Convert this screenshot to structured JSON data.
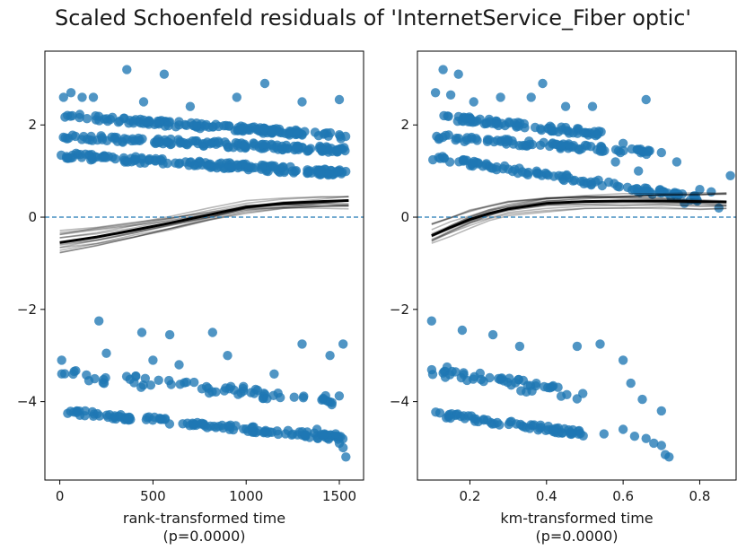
{
  "figure": {
    "title": "Scaled Schoenfeld residuals of 'InternetService_Fiber optic'"
  },
  "chart_data": [
    {
      "type": "scatter",
      "xlabel": "rank-transformed time",
      "p_label": "(p=0.0000)",
      "xlim": [
        -80,
        1630
      ],
      "ylim": [
        -5.7,
        3.6
      ],
      "xticks": [
        0,
        500,
        1000,
        1500
      ],
      "xtick_labels": [
        "0",
        "500",
        "1000",
        "1500"
      ],
      "yticks": [
        -4,
        -2,
        0,
        2
      ],
      "ytick_labels": [
        "−4",
        "−2",
        "0",
        "2"
      ],
      "zero_line": 0,
      "grid": false,
      "point_color": "#1f77b4",
      "bands": [
        {
          "x0": 0,
          "x1": 1540,
          "y0": 2.2,
          "y1": 1.75,
          "spread": 0.06,
          "n": 150
        },
        {
          "x0": 0,
          "x1": 1540,
          "y0": 1.75,
          "y1": 1.45,
          "spread": 0.06,
          "n": 150
        },
        {
          "x0": 0,
          "x1": 1540,
          "y0": 1.35,
          "y1": 0.95,
          "spread": 0.07,
          "n": 170
        },
        {
          "x0": 0,
          "x1": 1540,
          "y0": -3.4,
          "y1": -4.0,
          "spread": 0.12,
          "n": 70
        },
        {
          "x0": 0,
          "x1": 1540,
          "y0": -4.2,
          "y1": -4.8,
          "spread": 0.06,
          "n": 130
        }
      ],
      "scatter_points": [
        [
          20,
          2.6
        ],
        [
          60,
          2.7
        ],
        [
          120,
          2.6
        ],
        [
          180,
          2.6
        ],
        [
          360,
          3.2
        ],
        [
          560,
          3.1
        ],
        [
          450,
          2.5
        ],
        [
          700,
          2.4
        ],
        [
          1100,
          2.9
        ],
        [
          1300,
          2.5
        ],
        [
          1500,
          2.55
        ],
        [
          950,
          2.6
        ],
        [
          210,
          -2.25
        ],
        [
          440,
          -2.5
        ],
        [
          590,
          -2.55
        ],
        [
          820,
          -2.5
        ],
        [
          1300,
          -2.75
        ],
        [
          1520,
          -2.75
        ],
        [
          250,
          -2.95
        ],
        [
          500,
          -3.1
        ],
        [
          900,
          -3.0
        ],
        [
          1150,
          -3.4
        ],
        [
          1450,
          -3.0
        ],
        [
          10,
          -3.1
        ],
        [
          640,
          -3.2
        ],
        [
          1480,
          -4.7
        ],
        [
          1500,
          -4.9
        ],
        [
          1520,
          -5.0
        ],
        [
          1535,
          -5.2
        ],
        [
          1380,
          -4.6
        ],
        [
          1420,
          -4.7
        ]
      ],
      "lowess_main": {
        "x": [
          0,
          200,
          400,
          600,
          800,
          1000,
          1200,
          1400,
          1550
        ],
        "y": [
          -0.55,
          -0.43,
          -0.28,
          -0.12,
          0.05,
          0.22,
          0.3,
          0.34,
          0.36
        ]
      },
      "bootstrap_count": 14
    },
    {
      "type": "scatter",
      "xlabel": "km-transformed time",
      "p_label": "(p=0.0000)",
      "xlim": [
        0.063,
        0.895
      ],
      "ylim": [
        -5.7,
        3.6
      ],
      "xticks": [
        0.2,
        0.4,
        0.6,
        0.8
      ],
      "xtick_labels": [
        "0.2",
        "0.4",
        "0.6",
        "0.8"
      ],
      "yticks": [
        -4,
        -2,
        0,
        2
      ],
      "ytick_labels": [
        "−4",
        "−2",
        "0",
        "2"
      ],
      "zero_line": 0,
      "grid": false,
      "point_color": "#1f77b4",
      "bands": [
        {
          "x0": 0.1,
          "x1": 0.55,
          "y0": 2.2,
          "y1": 1.8,
          "spread": 0.06,
          "n": 80
        },
        {
          "x0": 0.1,
          "x1": 0.68,
          "y0": 1.75,
          "y1": 1.4,
          "spread": 0.06,
          "n": 90
        },
        {
          "x0": 0.1,
          "x1": 0.8,
          "y0": 1.3,
          "y1": 0.4,
          "spread": 0.07,
          "n": 110
        },
        {
          "x0": 0.1,
          "x1": 0.5,
          "y0": -3.3,
          "y1": -3.9,
          "spread": 0.12,
          "n": 50
        },
        {
          "x0": 0.1,
          "x1": 0.5,
          "y0": -4.25,
          "y1": -4.7,
          "spread": 0.06,
          "n": 70
        }
      ],
      "scatter_points": [
        [
          0.13,
          3.2
        ],
        [
          0.17,
          3.1
        ],
        [
          0.11,
          2.7
        ],
        [
          0.15,
          2.65
        ],
        [
          0.21,
          2.5
        ],
        [
          0.28,
          2.6
        ],
        [
          0.36,
          2.6
        ],
        [
          0.39,
          2.9
        ],
        [
          0.45,
          2.4
        ],
        [
          0.52,
          2.4
        ],
        [
          0.66,
          2.55
        ],
        [
          0.6,
          1.6
        ],
        [
          0.7,
          1.4
        ],
        [
          0.74,
          1.2
        ],
        [
          0.88,
          0.9
        ],
        [
          0.8,
          0.6
        ],
        [
          0.85,
          0.2
        ],
        [
          0.83,
          0.55
        ],
        [
          0.76,
          0.3
        ],
        [
          0.64,
          1.0
        ],
        [
          0.58,
          1.2
        ],
        [
          0.1,
          -2.25
        ],
        [
          0.18,
          -2.45
        ],
        [
          0.26,
          -2.55
        ],
        [
          0.33,
          -2.8
        ],
        [
          0.48,
          -2.8
        ],
        [
          0.54,
          -2.75
        ],
        [
          0.6,
          -3.1
        ],
        [
          0.62,
          -3.6
        ],
        [
          0.65,
          -3.95
        ],
        [
          0.6,
          -4.6
        ],
        [
          0.63,
          -4.75
        ],
        [
          0.66,
          -4.8
        ],
        [
          0.68,
          -4.9
        ],
        [
          0.7,
          -4.95
        ],
        [
          0.71,
          -5.15
        ],
        [
          0.72,
          -5.2
        ],
        [
          0.7,
          -4.2
        ],
        [
          0.55,
          -4.7
        ]
      ],
      "lowess_main": {
        "x": [
          0.1,
          0.15,
          0.2,
          0.25,
          0.3,
          0.4,
          0.5,
          0.6,
          0.7,
          0.8,
          0.87
        ],
        "y": [
          -0.4,
          -0.22,
          -0.05,
          0.08,
          0.18,
          0.3,
          0.34,
          0.35,
          0.35,
          0.34,
          0.33
        ]
      },
      "bootstrap_count": 14
    }
  ]
}
